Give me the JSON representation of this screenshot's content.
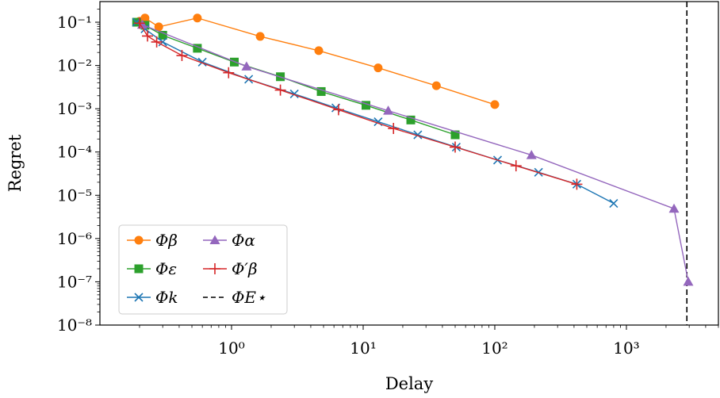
{
  "chart_data": {
    "type": "line",
    "title": "",
    "xlabel": "Delay",
    "ylabel": "Regret",
    "xscale": "log",
    "yscale": "log",
    "xlim": [
      0.1,
      5000
    ],
    "ylim": [
      1e-08,
      0.3
    ],
    "grid": false,
    "legend_position": "bottom-left",
    "x_ticks": [
      {
        "value": 1,
        "label": "10⁰"
      },
      {
        "value": 10,
        "label": "10¹"
      },
      {
        "value": 100,
        "label": "10²"
      },
      {
        "value": 1000,
        "label": "10³"
      }
    ],
    "y_ticks": [
      {
        "value": 0.1,
        "label": "10⁻¹"
      },
      {
        "value": 0.01,
        "label": "10⁻²"
      },
      {
        "value": 0.001,
        "label": "10⁻³"
      },
      {
        "value": 0.0001,
        "label": "10⁻⁴"
      },
      {
        "value": 1e-05,
        "label": "10⁻⁵"
      },
      {
        "value": 1e-06,
        "label": "10⁻⁶"
      },
      {
        "value": 1e-07,
        "label": "10⁻⁷"
      },
      {
        "value": 1e-08,
        "label": "10⁻⁸"
      }
    ],
    "series": [
      {
        "name": "Φβ",
        "color": "#ff7f0e",
        "marker": "circle",
        "x": [
          0.2,
          0.22,
          0.28,
          0.55,
          1.65,
          4.6,
          13,
          36,
          100
        ],
        "y": [
          0.105,
          0.125,
          0.078,
          0.125,
          0.047,
          0.022,
          0.0088,
          0.0034,
          0.00125
        ]
      },
      {
        "name": "Φε",
        "color": "#2ca02c",
        "marker": "square",
        "x": [
          0.19,
          0.22,
          0.3,
          0.55,
          1.05,
          2.35,
          4.8,
          10.5,
          23,
          50
        ],
        "y": [
          0.1,
          0.085,
          0.05,
          0.025,
          0.012,
          0.0055,
          0.0025,
          0.0012,
          0.00055,
          0.00025
        ]
      },
      {
        "name": "Φk",
        "color": "#1f77b4",
        "marker": "x",
        "x": [
          0.19,
          0.22,
          0.3,
          0.6,
          1.35,
          3.0,
          6.2,
          13,
          26,
          51,
          105,
          215,
          420,
          800
        ],
        "y": [
          0.1,
          0.07,
          0.035,
          0.012,
          0.0048,
          0.0022,
          0.00105,
          0.0005,
          0.00025,
          0.00013,
          6.5e-05,
          3.4e-05,
          1.8e-05,
          6.5e-06
        ]
      },
      {
        "name": "Φα",
        "color": "#9467bd",
        "marker": "triangle",
        "x": [
          0.21,
          1.3,
          15.5,
          190,
          2300,
          2950
        ],
        "y": [
          0.088,
          0.0095,
          0.0009,
          8.5e-05,
          4.9e-06,
          1e-07
        ]
      },
      {
        "name": "Φ′β",
        "color": "#d62728",
        "marker": "plus",
        "x": [
          0.2,
          0.23,
          0.27,
          0.42,
          0.95,
          2.35,
          6.5,
          17,
          50,
          145,
          420
        ],
        "y": [
          0.095,
          0.048,
          0.035,
          0.017,
          0.0068,
          0.0027,
          0.00095,
          0.00035,
          0.00013,
          4.8e-05,
          1.8e-05
        ]
      }
    ],
    "reference_line": {
      "name": "ΦE⋆",
      "x": 2880,
      "color": "#000000",
      "style": "dashed"
    },
    "legend": [
      {
        "label": "Φβ",
        "ref": "series.0"
      },
      {
        "label": "Φα",
        "ref": "series.3"
      },
      {
        "label": "Φε",
        "ref": "series.1"
      },
      {
        "label": "Φ′β",
        "ref": "series.4"
      },
      {
        "label": "Φk",
        "ref": "series.2"
      },
      {
        "label": "ΦE⋆",
        "ref": "reference_line"
      }
    ]
  }
}
